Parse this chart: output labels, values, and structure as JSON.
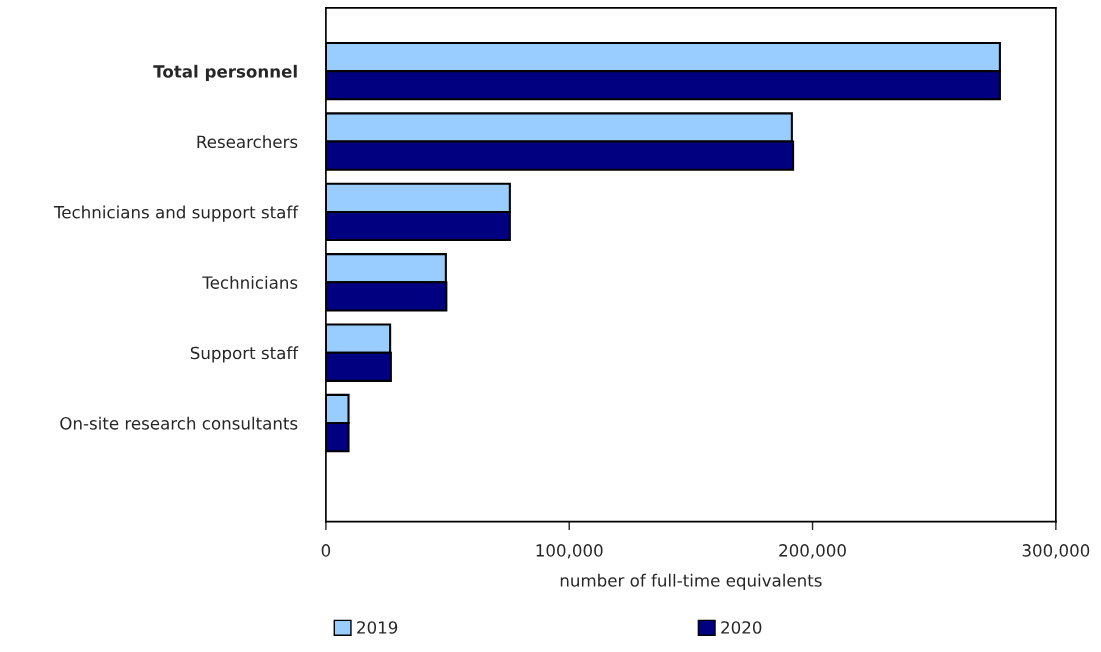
{
  "chart_data": {
    "type": "bar",
    "orientation": "horizontal",
    "xlabel": "number of full-time equivalents",
    "categories": [
      "Total personnel",
      "Researchers",
      "Technicians and support staff",
      "Technicians",
      "Support staff",
      "On-site research consultants"
    ],
    "series": [
      {
        "name": "2019",
        "color": "#99ccff",
        "values": [
          277000,
          191500,
          75600,
          49300,
          26400,
          9300
        ]
      },
      {
        "name": "2020",
        "color": "#000080",
        "values": [
          277000,
          192000,
          75600,
          49500,
          26700,
          9300
        ]
      }
    ],
    "xlim": [
      0,
      300000
    ],
    "xticks": [
      0,
      {
        "value": 100000,
        "label": "100,000"
      },
      {
        "value": 200000,
        "label": "200,000"
      },
      {
        "value": 300000,
        "label": "300,000"
      }
    ],
    "grid": false,
    "legend": "bottom"
  }
}
